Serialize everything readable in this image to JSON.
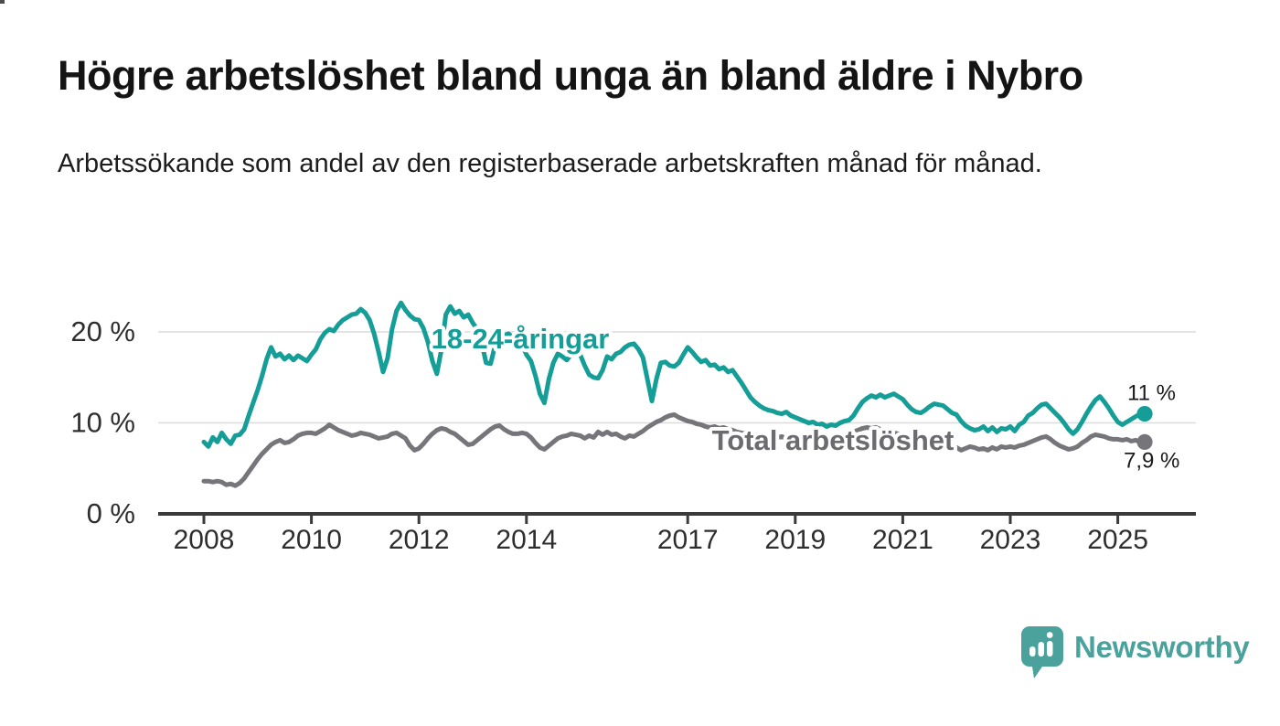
{
  "header": {
    "title": "Högre arbetslöshet bland unga än bland äldre i Nybro",
    "subtitle": "Arbetssökande som andel av den registerbaserade arbetskraften månad för månad."
  },
  "branding": {
    "name": "Newsworthy",
    "icon": "newsworthy-speech-bubble-bar-chart-icon",
    "color": "#4BA19B"
  },
  "chart_data": {
    "type": "line",
    "title": "Högre arbetslöshet bland unga än bland äldre i Nybro",
    "subtitle": "Arbetssökande som andel av den registerbaserade arbetskraften månad för månad.",
    "x_axis": {
      "start": "2008-01",
      "end": "2025-07",
      "points_per_year": 12,
      "tick_years": [
        2008,
        2010,
        2012,
        2014,
        2017,
        2019,
        2021,
        2023,
        2025
      ]
    },
    "y_axis": {
      "unit": "%",
      "ticks": [
        {
          "value": 0,
          "label": "0 %"
        },
        {
          "value": 10,
          "label": "10 %"
        },
        {
          "value": 20,
          "label": "20 %"
        }
      ],
      "grid": true,
      "max": 25
    },
    "legend_position": "inline-labels",
    "series": [
      {
        "id": "youth",
        "label": "18-24-åringar",
        "color": "#149E97",
        "label_color": "#149E97",
        "end_label": "11 %",
        "end_value": 11.0,
        "values": [
          7.9,
          7.4,
          8.4,
          7.9,
          8.9,
          8.2,
          7.7,
          8.6,
          8.7,
          9.3,
          10.8,
          12.2,
          13.6,
          15.2,
          17.0,
          18.3,
          17.3,
          17.6,
          17.0,
          17.4,
          16.9,
          17.4,
          17.1,
          16.8,
          17.5,
          18.1,
          19.2,
          19.9,
          20.3,
          20.1,
          20.8,
          21.3,
          21.6,
          21.9,
          22.0,
          22.5,
          22.1,
          21.3,
          19.8,
          17.8,
          15.6,
          17.1,
          20.3,
          22.3,
          23.2,
          22.4,
          21.8,
          21.4,
          21.3,
          20.4,
          18.9,
          16.8,
          15.4,
          18.0,
          21.9,
          22.8,
          22.0,
          22.3,
          21.6,
          21.9,
          21.0,
          20.3,
          18.8,
          16.6,
          16.5,
          18.5,
          19.9,
          19.6,
          19.8,
          19.4,
          19.1,
          18.6,
          17.5,
          16.8,
          15.2,
          13.2,
          12.2,
          14.8,
          16.6,
          17.6,
          17.3,
          16.9,
          17.5,
          17.8,
          17.5,
          16.3,
          15.3,
          15.0,
          14.9,
          15.8,
          17.3,
          17.0,
          17.6,
          17.8,
          18.3,
          18.6,
          18.7,
          18.1,
          17.2,
          14.8,
          12.4,
          14.8,
          16.6,
          16.7,
          16.3,
          16.2,
          16.6,
          17.5,
          18.3,
          17.8,
          17.2,
          16.7,
          16.9,
          16.3,
          16.4,
          15.9,
          16.1,
          15.6,
          15.8,
          15.1,
          14.4,
          13.6,
          12.8,
          12.3,
          11.9,
          11.6,
          11.4,
          11.3,
          11.1,
          11.0,
          11.2,
          10.8,
          10.6,
          10.4,
          10.2,
          10.0,
          10.1,
          9.8,
          9.9,
          9.6,
          9.8,
          9.7,
          10.0,
          10.2,
          10.3,
          10.8,
          11.6,
          12.3,
          12.7,
          13.0,
          12.8,
          13.1,
          12.8,
          13.0,
          13.2,
          12.9,
          12.6,
          12.0,
          11.5,
          11.2,
          11.1,
          11.4,
          11.8,
          12.1,
          12.0,
          11.9,
          11.5,
          11.1,
          10.9,
          10.2,
          9.7,
          9.4,
          9.2,
          9.3,
          9.6,
          9.1,
          9.5,
          9.0,
          9.4,
          9.3,
          9.6,
          9.1,
          9.8,
          10.1,
          10.8,
          11.1,
          11.6,
          12.0,
          12.1,
          11.6,
          11.1,
          10.6,
          10.0,
          9.3,
          8.8,
          9.3,
          10.1,
          11.0,
          11.8,
          12.5,
          12.9,
          12.3,
          11.6,
          10.8,
          10.1,
          9.8,
          10.1,
          10.4,
          10.7,
          11.0,
          11.0
        ]
      },
      {
        "id": "total",
        "label": "Total arbetslöshet",
        "color": "#76767A",
        "label_color": "#6B6B70",
        "end_label": "7,9 %",
        "end_value": 7.9,
        "values": [
          3.6,
          3.6,
          3.5,
          3.6,
          3.5,
          3.2,
          3.3,
          3.1,
          3.4,
          3.9,
          4.6,
          5.3,
          6.0,
          6.6,
          7.1,
          7.6,
          7.9,
          8.1,
          7.8,
          7.9,
          8.2,
          8.6,
          8.8,
          8.9,
          8.9,
          8.8,
          9.1,
          9.4,
          9.8,
          9.5,
          9.2,
          9.0,
          8.8,
          8.6,
          8.7,
          8.9,
          8.8,
          8.7,
          8.5,
          8.3,
          8.4,
          8.5,
          8.8,
          8.9,
          8.6,
          8.3,
          7.5,
          7.0,
          7.2,
          7.7,
          8.3,
          8.8,
          9.2,
          9.4,
          9.3,
          9.0,
          8.8,
          8.4,
          8.0,
          7.6,
          7.7,
          8.1,
          8.5,
          8.9,
          9.3,
          9.6,
          9.7,
          9.3,
          9.0,
          8.8,
          8.8,
          8.9,
          8.8,
          8.4,
          7.8,
          7.3,
          7.1,
          7.5,
          7.9,
          8.3,
          8.5,
          8.6,
          8.8,
          8.7,
          8.6,
          8.3,
          8.6,
          8.4,
          9.0,
          8.7,
          9.0,
          8.7,
          8.8,
          8.5,
          8.3,
          8.6,
          8.5,
          8.8,
          9.1,
          9.5,
          9.8,
          10.1,
          10.3,
          10.6,
          10.8,
          10.9,
          10.6,
          10.4,
          10.2,
          10.1,
          9.9,
          9.8,
          9.6,
          9.5,
          9.6,
          9.4,
          9.5,
          9.3,
          9.2,
          9.0,
          8.9,
          8.8,
          8.6,
          8.7,
          8.5,
          8.6,
          8.4,
          8.5,
          8.4,
          8.5,
          8.3,
          8.4,
          8.4,
          8.3,
          8.5,
          8.4,
          8.3,
          8.2,
          8.4,
          8.3,
          8.5,
          8.4,
          8.6,
          8.7,
          8.8,
          9.0,
          9.2,
          9.4,
          9.5,
          9.4,
          9.5,
          9.3,
          9.2,
          9.0,
          8.9,
          8.8,
          8.7,
          8.5,
          8.4,
          8.2,
          8.1,
          8.0,
          8.1,
          7.9,
          7.8,
          7.6,
          7.5,
          7.4,
          7.3,
          7.0,
          7.2,
          7.4,
          7.3,
          7.1,
          7.2,
          7.0,
          7.3,
          7.1,
          7.4,
          7.3,
          7.4,
          7.3,
          7.5,
          7.6,
          7.8,
          8.0,
          8.2,
          8.4,
          8.5,
          8.2,
          7.8,
          7.5,
          7.3,
          7.1,
          7.2,
          7.4,
          7.8,
          8.1,
          8.5,
          8.7,
          8.6,
          8.5,
          8.3,
          8.2,
          8.2,
          8.1,
          8.2,
          8.0,
          8.1,
          7.9,
          7.9
        ]
      }
    ]
  }
}
